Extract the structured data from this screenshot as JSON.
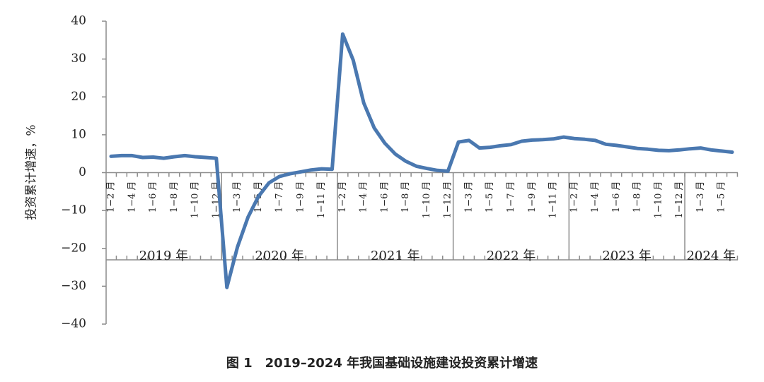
{
  "chart_data": {
    "type": "line",
    "title": "图 1　2019–2024 年我国基础设施建设投资累计增速",
    "y_label": "投资累计增速，%",
    "categories": [
      "1−2 月",
      null,
      "1−4 月",
      null,
      "1−6 月",
      null,
      "1−8 月",
      null,
      "1−10 月",
      null,
      "1−12 月",
      null,
      "1−3 月",
      null,
      "1−5 月",
      null,
      "1−7 月",
      null,
      "1−9 月",
      null,
      "1−11 月",
      null,
      "1−2 月",
      null,
      "1−4 月",
      null,
      "1−6 月",
      null,
      "1−8 月",
      null,
      "1−10 月",
      null,
      "1−12 月",
      null,
      "1−3 月",
      null,
      "1−5 月",
      null,
      "1−7 月",
      null,
      "1−9 月",
      null,
      "1−11 月",
      null,
      "1−2 月",
      null,
      "1−4 月",
      null,
      "1−6 月",
      null,
      "1−8 月",
      null,
      "1−10 月",
      null,
      "1−12 月",
      null,
      "1−3 月",
      null,
      "1−5 月",
      null
    ],
    "year_labels": [
      "2019 年",
      "2020 年",
      "2021 年",
      "2022 年",
      "2023 年",
      "2024 年"
    ],
    "series": [
      {
        "color": "#4a78b0",
        "values": [
          4.3,
          4.5,
          4.5,
          4.0,
          4.1,
          3.8,
          4.2,
          4.5,
          4.2,
          4.0,
          3.8,
          -30.3,
          -19.7,
          -11.8,
          -6.3,
          -2.7,
          -1.0,
          -0.3,
          0.2,
          0.7,
          1.0,
          0.9,
          36.6,
          29.7,
          18.4,
          11.8,
          7.8,
          4.9,
          3.0,
          1.7,
          1.1,
          0.6,
          0.4,
          8.1,
          8.5,
          6.5,
          6.7,
          7.1,
          7.4,
          8.3,
          8.6,
          8.7,
          8.9,
          9.4,
          9.0,
          8.8,
          8.5,
          7.5,
          7.2,
          6.8,
          6.4,
          6.2,
          5.9,
          5.8,
          6.0,
          6.3,
          6.5,
          6.0,
          5.7,
          5.4
        ]
      }
    ],
    "ylim": [
      -40,
      40
    ],
    "yticks": [
      40,
      30,
      20,
      10,
      0,
      {
        "value": -10,
        "label": "−10"
      },
      {
        "value": -20,
        "label": "−20"
      },
      {
        "value": -30,
        "label": "−30"
      },
      {
        "value": -40,
        "label": "−40"
      }
    ],
    "grid": false
  }
}
